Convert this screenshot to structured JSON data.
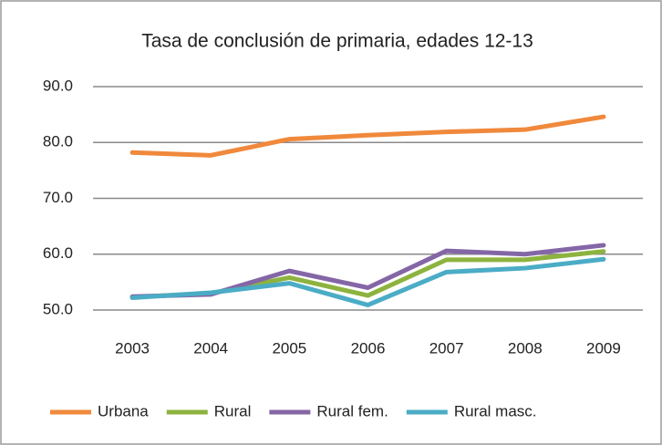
{
  "chart_data": {
    "type": "line",
    "title": "Tasa de conclusión de primaria, edades 12-13",
    "categories": [
      "2003",
      "2004",
      "2005",
      "2006",
      "2007",
      "2008",
      "2009"
    ],
    "series": [
      {
        "name": "Urbana",
        "color": "#f0893c",
        "values": [
          78.2,
          77.7,
          80.6,
          81.3,
          81.9,
          82.3,
          84.6
        ]
      },
      {
        "name": "Rural",
        "color": "#8db33f",
        "values": [
          52.3,
          53.0,
          55.8,
          52.6,
          59.0,
          59.0,
          60.5
        ]
      },
      {
        "name": "Rural fem.",
        "color": "#8466a6",
        "values": [
          52.4,
          52.8,
          57.0,
          54.0,
          60.6,
          60.0,
          61.6
        ]
      },
      {
        "name": "Rural masc.",
        "color": "#4bacc6",
        "values": [
          52.2,
          53.1,
          54.8,
          50.9,
          56.8,
          57.5,
          59.1
        ]
      }
    ],
    "ylim": [
      50,
      90
    ],
    "yticks": [
      {
        "value": 50,
        "label": "50.0"
      },
      {
        "value": 60,
        "label": "60.0"
      },
      {
        "value": 70,
        "label": "70.0"
      },
      {
        "value": 80,
        "label": "80.0"
      },
      {
        "value": 90,
        "label": "90.0"
      }
    ],
    "grid": true,
    "legend": "bottom"
  }
}
